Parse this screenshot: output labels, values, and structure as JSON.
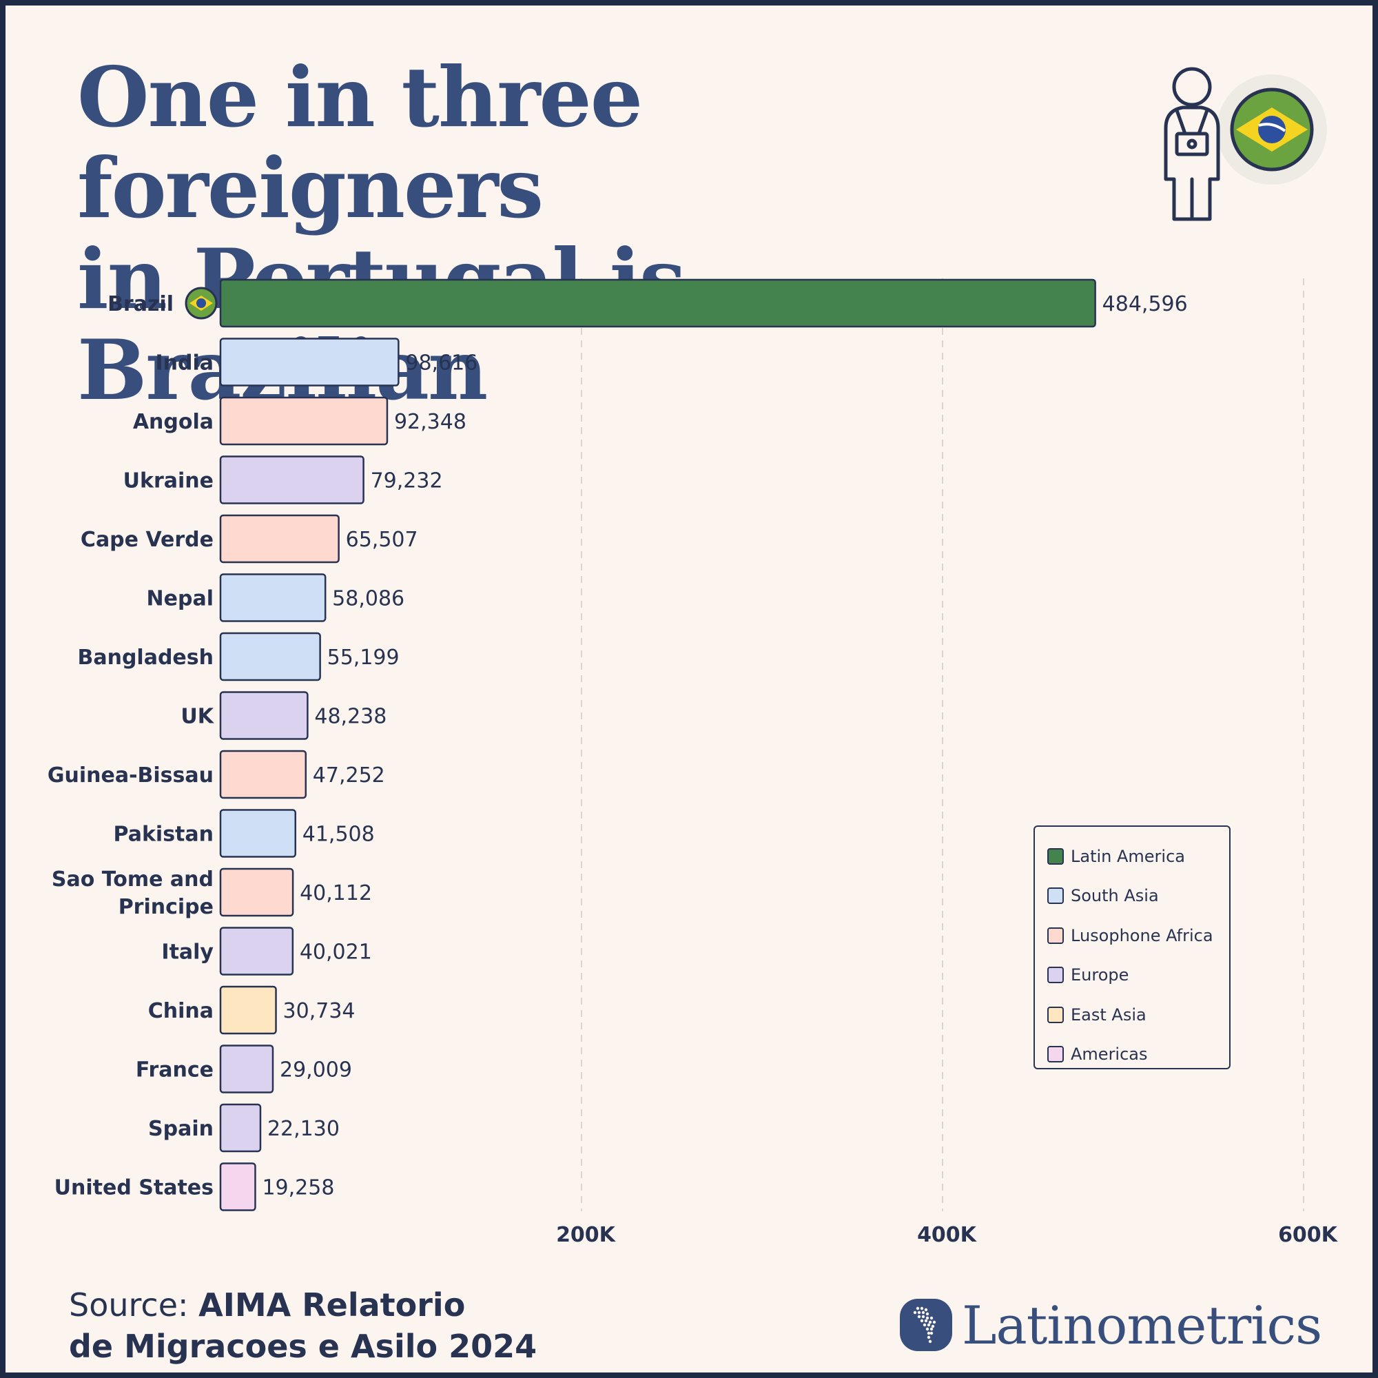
{
  "title_lines": [
    "One in three foreigners",
    "in Portugal is Brazilian"
  ],
  "chart_data": {
    "type": "bar",
    "orientation": "horizontal",
    "categories": [
      "Brazil",
      "India",
      "Angola",
      "Ukraine",
      "Cape Verde",
      "Nepal",
      "Bangladesh",
      "UK",
      "Guinea-Bissau",
      "Pakistan",
      "Sao Tome and Principe",
      "Italy",
      "China",
      "France",
      "Spain",
      "United States"
    ],
    "category_lines": [
      [
        "Brazil"
      ],
      [
        "India"
      ],
      [
        "Angola"
      ],
      [
        "Ukraine"
      ],
      [
        "Cape Verde"
      ],
      [
        "Nepal"
      ],
      [
        "Bangladesh"
      ],
      [
        "UK"
      ],
      [
        "Guinea-Bissau"
      ],
      [
        "Pakistan"
      ],
      [
        "Sao Tome and",
        "Principe"
      ],
      [
        "Italy"
      ],
      [
        "China"
      ],
      [
        "France"
      ],
      [
        "Spain"
      ],
      [
        "United States"
      ]
    ],
    "values": [
      484596,
      98616,
      92348,
      79232,
      65507,
      58086,
      55199,
      48238,
      47252,
      41508,
      40112,
      40021,
      30734,
      29009,
      22130,
      19258
    ],
    "value_labels": [
      "484,596",
      "98,616",
      "92,348",
      "79,232",
      "65,507",
      "58,086",
      "55,199",
      "48,238",
      "47,252",
      "41,508",
      "40,112",
      "40,021",
      "30,734",
      "29,009",
      "22,130",
      "19,258"
    ],
    "regions": [
      "Latin America",
      "South Asia",
      "Lusophone Africa",
      "Europe",
      "Lusophone Africa",
      "South Asia",
      "South Asia",
      "Europe",
      "Lusophone Africa",
      "South Asia",
      "Lusophone Africa",
      "Europe",
      "East Asia",
      "Europe",
      "Europe",
      "Americas"
    ],
    "xlim": [
      0,
      600000
    ],
    "xticks": [
      200000,
      400000,
      600000
    ],
    "xtick_labels": [
      "200K",
      "400K",
      "600K"
    ],
    "grid": "vertical dashed",
    "legend_position": "bottom-right",
    "legend": [
      {
        "name": "Latin America",
        "color": "#44834d"
      },
      {
        "name": "South Asia",
        "color": "#cfdff5"
      },
      {
        "name": "Lusophone Africa",
        "color": "#fdd9cf"
      },
      {
        "name": "Europe",
        "color": "#dbd2f0"
      },
      {
        "name": "East Asia",
        "color": "#fde6c0"
      },
      {
        "name": "Americas",
        "color": "#f4d6ee"
      }
    ]
  },
  "source": {
    "prefix": "Source: ",
    "body_line1": "AIMA Relatorio",
    "line2": "de Migracoes e Asilo 2024"
  },
  "brand": {
    "name": "Latinometrics"
  },
  "icons": {
    "header": "traveler-with-brazil-flag-icon",
    "brand": "latin-america-map-icon",
    "brazil": "brazil-flag-icon"
  },
  "colors": {
    "title": "#384f7e",
    "text": "#283352",
    "background": "#fcf5ef",
    "frame": "#1f2a44"
  }
}
